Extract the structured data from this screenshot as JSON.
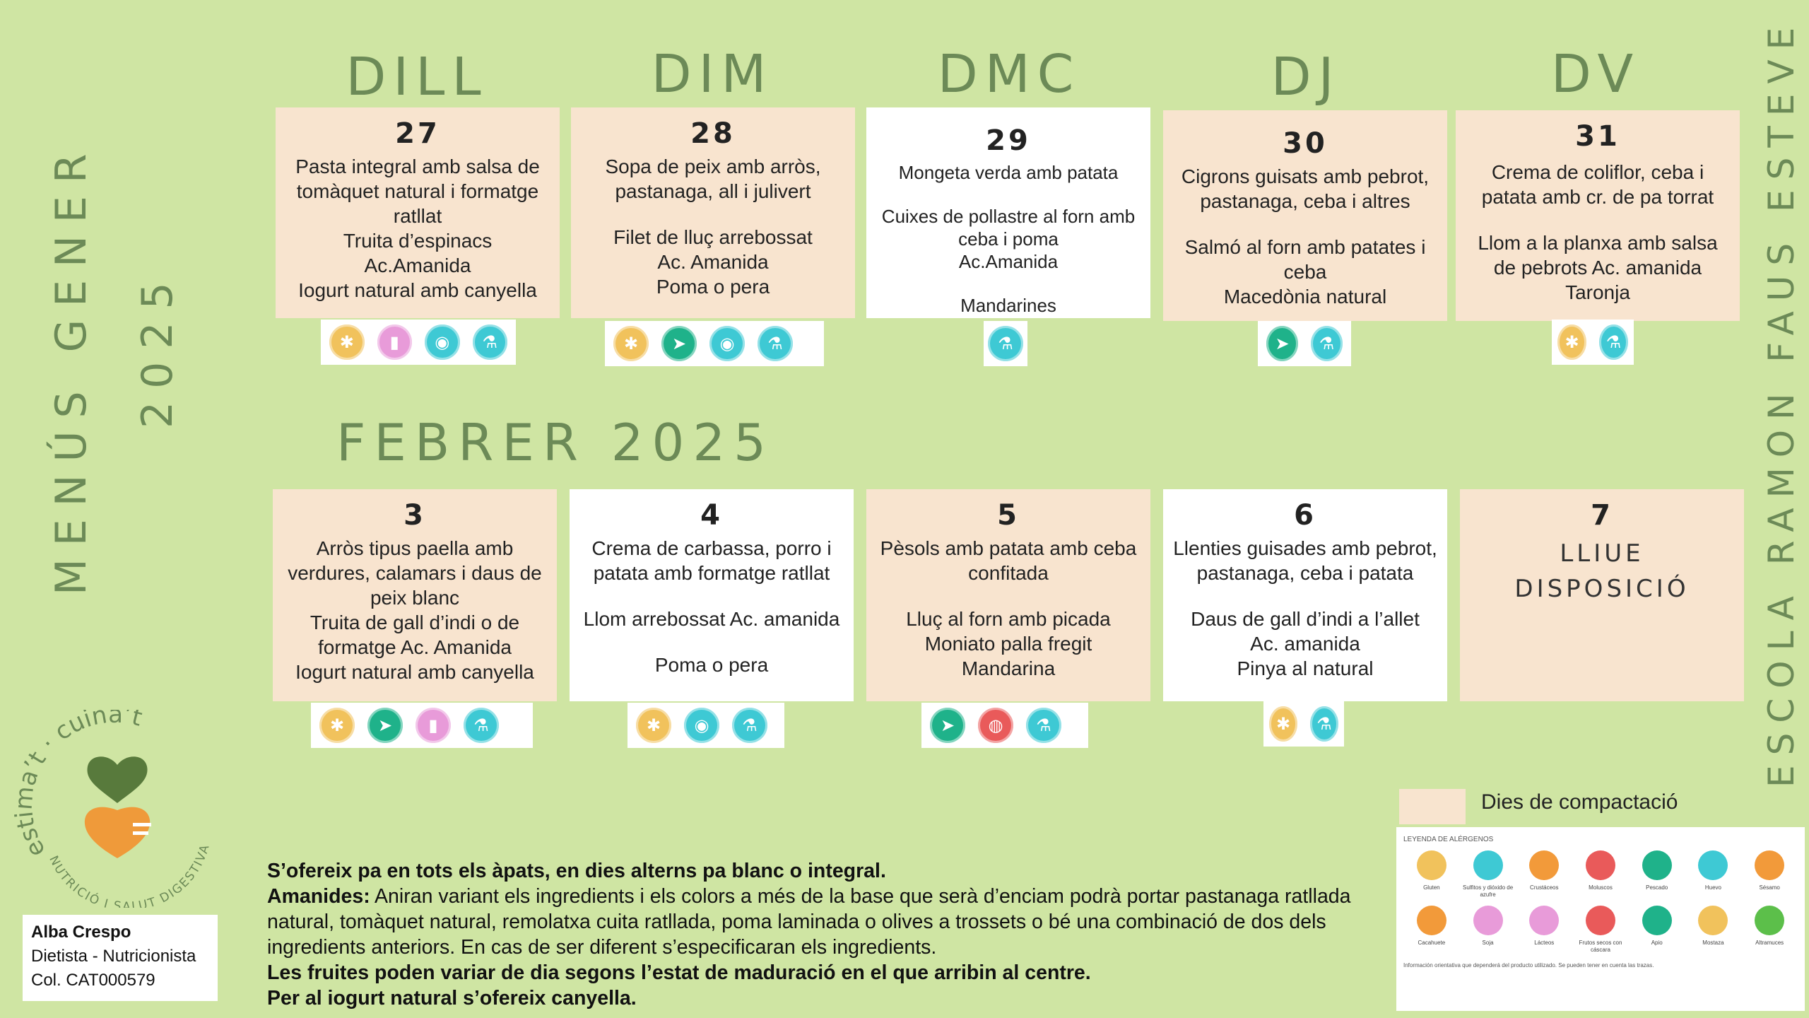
{
  "side": {
    "left_title": "MENÚS GENER",
    "left_year": "2025",
    "right_school": "ESCOLA RAMON FAUS ESTEVE"
  },
  "week1": {
    "days": [
      "DILL",
      "DIM",
      "DMC",
      "DJ",
      "DV"
    ],
    "cards": [
      {
        "num": "27",
        "lines": [
          "Pasta integral amb salsa de tomàquet natural i formatge ratllat",
          "Truita d’espinacs",
          "Ac.Amanida",
          "Iogurt natural amb canyella"
        ]
      },
      {
        "num": "28",
        "lines": [
          "Sopa de peix amb arròs, pastanaga, all i julivert",
          "",
          "Filet de lluç arrebossat",
          "Ac. Amanida",
          "Poma o pera"
        ]
      },
      {
        "num": "29",
        "lines": [
          "Mongeta verda amb patata",
          "",
          "Cuixes de pollastre al forn amb ceba i poma",
          "Ac.Amanida",
          "",
          "Mandarines"
        ]
      },
      {
        "num": "30",
        "lines": [
          "Cigrons guisats amb pebrot, pastanaga, ceba i altres",
          "",
          "Salmó al forn amb patates i ceba",
          "Macedònia natural"
        ]
      },
      {
        "num": "31",
        "lines": [
          "Crema de coliflor, ceba i patata amb cr. de pa torrat",
          "",
          "Llom a la planxa  amb salsa de pebrots Ac. amanida",
          "Taronja"
        ]
      }
    ]
  },
  "week2": {
    "title": "FEBRER 2025",
    "cards": [
      {
        "num": "3",
        "lines": [
          "Arròs tipus paella amb verdures, calamars i daus de peix blanc",
          "Truita de gall d’indi o de formatge  Ac. Amanida",
          "Iogurt natural amb canyella"
        ]
      },
      {
        "num": "4",
        "lines": [
          "Crema de carbassa, porro i patata amb formatge ratllat",
          "",
          "Llom arrebossat   Ac. amanida",
          "",
          "Poma o pera"
        ]
      },
      {
        "num": "5",
        "lines": [
          "Pèsols amb patata amb ceba confitada",
          "",
          "Lluç al forn amb picada",
          "Moniato palla fregit",
          "Mandarina"
        ]
      },
      {
        "num": "6",
        "lines": [
          "Llenties guisades amb pebrot, pastanaga, ceba i patata",
          "",
          "Daus de gall d’indi a l’allet",
          "Ac. amanida",
          "Pinya al natural"
        ]
      },
      {
        "num": "7",
        "free1": "LLIUE",
        "free2": "DISPOSICIÓ"
      }
    ]
  },
  "icon_glyphs": {
    "gluten": "✱",
    "lactis": "▮",
    "ou": "◉",
    "sulfit": "⚗",
    "peix": "➤",
    "fruits": "◍"
  },
  "icon_rows": {
    "w1_27": [
      "gluten",
      "lactis",
      "ou",
      "sulfit"
    ],
    "w1_28": [
      "gluten",
      "peix",
      "ou",
      "sulfit"
    ],
    "w1_29": [
      "sulfit"
    ],
    "w1_30": [
      "peix",
      "sulfit"
    ],
    "w1_31": [
      "gluten",
      "sulfit"
    ],
    "w2_3": [
      "gluten",
      "peix",
      "lactis",
      "sulfit"
    ],
    "w2_4": [
      "gluten",
      "ou",
      "sulfit"
    ],
    "w2_5": [
      "peix",
      "fruits",
      "sulfit"
    ],
    "w2_6": [
      "gluten",
      "sulfit"
    ]
  },
  "notes": {
    "line1": "S’ofereix pa en tots els àpats, en dies alterns pa blanc o integral.",
    "amanides_label": "Amanides:",
    "amanides_text": " Aniran variant els ingredients i els colors a més de la base que serà d’enciam podrà portar pastanaga ratllada natural, tomàquet natural, remolatxa cuita ratllada, poma laminada o olives a trossets o bé una combinació de dos dels ingredients anteriors. En cas de ser diferent s’especificaran els ingredients.",
    "line3": "Les fruites poden variar de dia segons l’estat de maduració en el que arribin al centre.",
    "line4": "Per al iogurt natural s’ofereix canyella."
  },
  "credit": {
    "name": "Alba Crespo",
    "role": "Dietista - Nutricionista",
    "col": "Col. CAT000579"
  },
  "legend": {
    "label": "Dies de compactació",
    "allergen_title": "LEYENDA DE ALÉRGENOS",
    "allergens": [
      {
        "name": "Gluten",
        "color": "#f1c25c"
      },
      {
        "name": "Sulfitos y dióxido de azufre",
        "color": "#3ec9d4"
      },
      {
        "name": "Crustáceos",
        "color": "#f29a3a"
      },
      {
        "name": "Moluscos",
        "color": "#e95a5a"
      },
      {
        "name": "Pescado",
        "color": "#1fb28a"
      },
      {
        "name": "Huevo",
        "color": "#3ec9d4"
      },
      {
        "name": "Sésamo",
        "color": "#f29a3a"
      },
      {
        "name": "Cacahuete",
        "color": "#f29a3a"
      },
      {
        "name": "Soja",
        "color": "#e89bd9"
      },
      {
        "name": "Lácteos",
        "color": "#e89bd9"
      },
      {
        "name": "Frutos secos con cáscara",
        "color": "#e95a5a"
      },
      {
        "name": "Apio",
        "color": "#1fb28a"
      },
      {
        "name": "Mostaza",
        "color": "#f1c25c"
      },
      {
        "name": "Altramuces",
        "color": "#5cbf4a"
      }
    ],
    "footnote": "Información orientativa que dependerá del producto utilizado. Se pueden tener en cuenta las trazas."
  },
  "logo": {
    "top_text": "estima’t · cuina’t",
    "bottom_text": "NUTRICIÓ I SALUT DIGESTIVA"
  }
}
